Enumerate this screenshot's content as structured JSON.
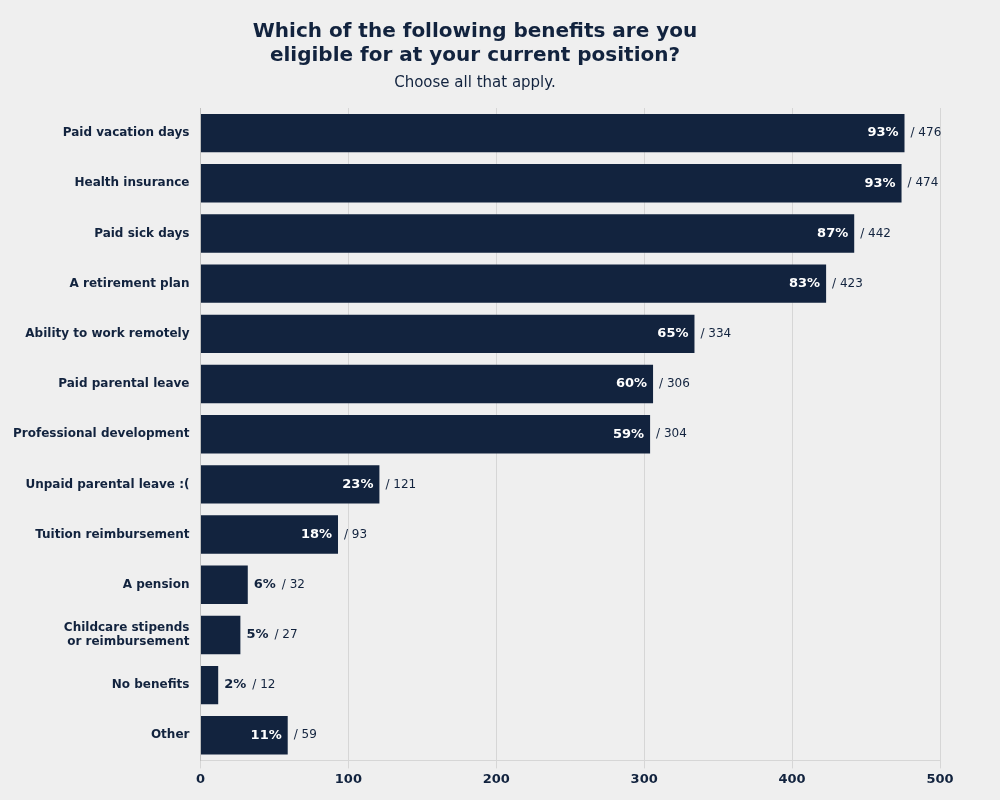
{
  "chart_data": {
    "type": "bar",
    "orientation": "horizontal",
    "title": "Which of the following benefits are you\neligible for at your current position?",
    "subtitle": "Choose all that apply.",
    "categories": [
      "Paid vacation days",
      "Health insurance",
      "Paid sick days",
      "A retirement plan",
      "Ability to work remotely",
      "Paid parental leave",
      "Professional development",
      "Unpaid parental leave :(",
      "Tuition reimbursement",
      "A pension",
      "Childcare stipends\nor reimbursement",
      "No benefits",
      "Other"
    ],
    "values": [
      476,
      474,
      442,
      423,
      334,
      306,
      304,
      121,
      93,
      32,
      27,
      12,
      59
    ],
    "value_labels": [
      "/ 476",
      "/ 474",
      "/ 442",
      "/ 423",
      "/ 334",
      "/ 306",
      "/ 304",
      "/ 121",
      "/ 93",
      "/ 32",
      "/ 27",
      "/ 12",
      "/ 59"
    ],
    "percentages": [
      93,
      93,
      87,
      83,
      65,
      60,
      59,
      23,
      18,
      6,
      5,
      2,
      11
    ],
    "percentage_labels": [
      "93%",
      "93%",
      "87%",
      "83%",
      "65%",
      "60%",
      "59%",
      "23%",
      "18%",
      "6%",
      "5%",
      "2%",
      "11%"
    ],
    "color": "#12233e",
    "xlim": [
      0,
      500
    ],
    "xticks": [
      0,
      100,
      200,
      300,
      400,
      500
    ],
    "grid": true,
    "data_labels": true
  }
}
